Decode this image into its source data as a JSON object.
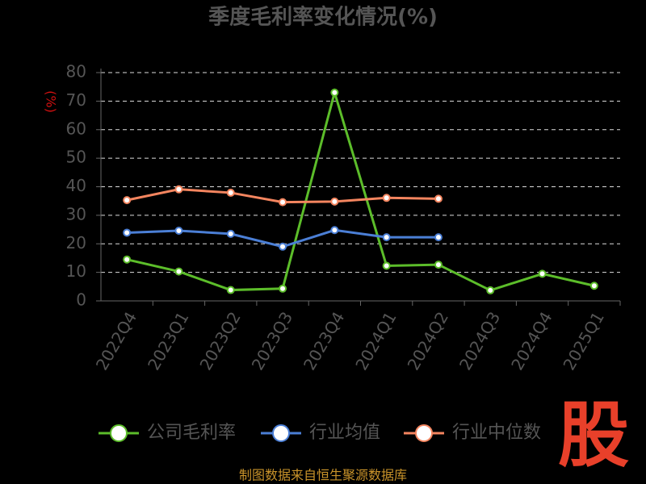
{
  "chart_data": {
    "type": "line",
    "title": "季度毛利率变化情况(%)",
    "y_label": "(%)",
    "categories": [
      "2022Q4",
      "2023Q1",
      "2023Q2",
      "2023Q3",
      "2023Q4",
      "2024Q1",
      "2024Q2",
      "2024Q3",
      "2024Q4",
      "2025Q1"
    ],
    "series": [
      {
        "name": "公司毛利率",
        "color": "#5cbd2a",
        "values": [
          14.5,
          10.3,
          3.8,
          4.3,
          73.0,
          12.3,
          12.7,
          3.7,
          9.5,
          5.3
        ]
      },
      {
        "name": "行业均值",
        "color": "#4b7fd6",
        "values": [
          23.9,
          24.6,
          23.5,
          19.0,
          24.8,
          22.3,
          22.3,
          null,
          null,
          null
        ]
      },
      {
        "name": "行业中位数",
        "color": "#f4855f",
        "values": [
          35.3,
          39.1,
          37.9,
          34.6,
          34.8,
          36.1,
          35.8,
          null,
          null,
          null
        ]
      }
    ],
    "ylim": [
      0,
      80
    ],
    "yticks": [
      0,
      10,
      20,
      30,
      40,
      50,
      60,
      70,
      80
    ],
    "grid": true,
    "watermark": "股",
    "source": "制图数据来自恒生聚源数据库"
  }
}
